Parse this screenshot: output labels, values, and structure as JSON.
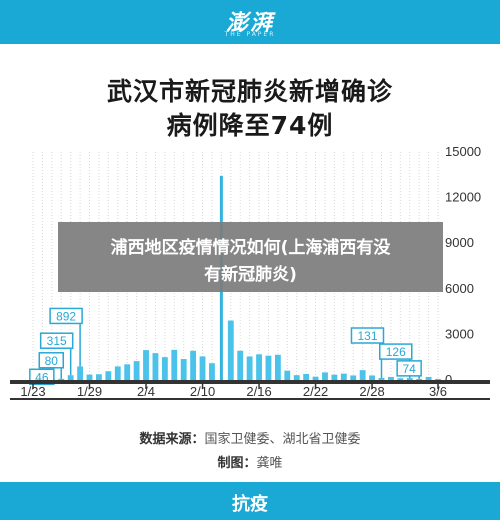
{
  "header": {
    "logo": "澎湃",
    "logo_sub": "THE PAPER"
  },
  "title": {
    "line1": "武汉市新冠肺炎新增确诊",
    "line2": "病例降至74例"
  },
  "overlay": {
    "line1": "浦西地区疫情情况如何(上海浦西有没",
    "line2": "有新冠肺炎)"
  },
  "source": {
    "label": "数据来源：",
    "value": "国家卫健委、湖北省卫健委"
  },
  "maker": {
    "label": "制图：",
    "value": "龚唯"
  },
  "footer": {
    "label": "抗疫"
  },
  "colors": {
    "brand": "#1aa9d4",
    "bar": "#4bc2ea",
    "peak": "#33b3de",
    "label_box": "#29a8d6",
    "axis": "#333333",
    "gridline": "#d8d8d8"
  },
  "chart_data": {
    "type": "bar",
    "title": "武汉市新冠肺炎新增确诊病例降至74例",
    "ylim": [
      0,
      15000
    ],
    "y_ticks": [
      "0",
      "3000",
      "6000",
      "9000",
      "12000",
      "15000"
    ],
    "y_axis_side": "right",
    "grid": true,
    "x_tick_labels": [
      {
        "index": 0,
        "label": "1/23"
      },
      {
        "index": 6,
        "label": "1/29"
      },
      {
        "index": 12,
        "label": "2/4"
      },
      {
        "index": 18,
        "label": "2/10"
      },
      {
        "index": 24,
        "label": "2/16"
      },
      {
        "index": 30,
        "label": "2/22"
      },
      {
        "index": 36,
        "label": "2/28"
      },
      {
        "index": 43,
        "label": "3/6"
      }
    ],
    "values": [
      62,
      70,
      46,
      80,
      315,
      892,
      356,
      378,
      576,
      894,
      1033,
      1242,
      1967,
      1766,
      1501,
      1985,
      1379,
      1920,
      1552,
      1104,
      13436,
      3910,
      1923,
      1548,
      1690,
      1600,
      1660,
      615,
      319,
      400,
      220,
      500,
      350,
      420,
      300,
      650,
      300,
      131,
      200,
      115,
      126,
      74,
      200,
      74
    ],
    "data_labels": [
      {
        "index": 2,
        "label": "46"
      },
      {
        "index": 3,
        "label": "80"
      },
      {
        "index": 4,
        "label": "315"
      },
      {
        "index": 5,
        "label": "892"
      },
      {
        "index": 37,
        "label": "131"
      },
      {
        "index": 40,
        "label": "126"
      },
      {
        "index": 41,
        "label": "74"
      }
    ]
  }
}
